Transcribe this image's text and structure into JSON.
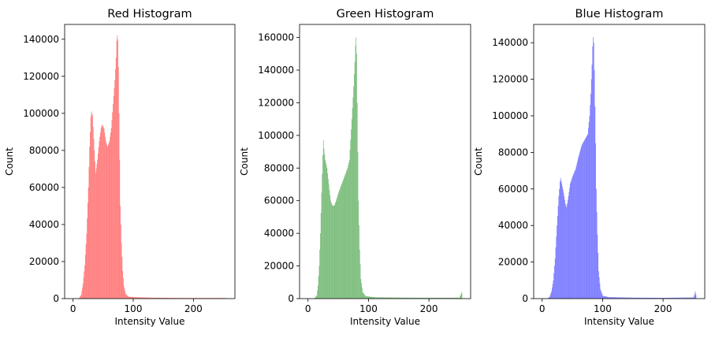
{
  "chart_data": [
    {
      "type": "bar",
      "title": "Red Histogram",
      "xlabel": "Intensity Value",
      "ylabel": "Count",
      "color": "#ff0000",
      "alpha": 0.5,
      "xlim": [
        -14,
        269
      ],
      "ylim": [
        0,
        148000
      ],
      "xticks": [
        0,
        100,
        200
      ],
      "yticks": [
        0,
        20000,
        40000,
        60000,
        80000,
        100000,
        120000,
        140000
      ],
      "bin_width": 1,
      "shape_points": [
        [
          0,
          0
        ],
        [
          9,
          0
        ],
        [
          13,
          2000
        ],
        [
          16,
          8000
        ],
        [
          19,
          18000
        ],
        [
          22,
          35000
        ],
        [
          25,
          60000
        ],
        [
          27,
          82000
        ],
        [
          29,
          98000
        ],
        [
          30,
          101000
        ],
        [
          32,
          99000
        ],
        [
          35,
          80000
        ],
        [
          37,
          68000
        ],
        [
          40,
          75000
        ],
        [
          43,
          85000
        ],
        [
          46,
          92000
        ],
        [
          48,
          94000
        ],
        [
          51,
          92000
        ],
        [
          54,
          85000
        ],
        [
          57,
          82000
        ],
        [
          60,
          85000
        ],
        [
          63,
          92000
        ],
        [
          66,
          105000
        ],
        [
          69,
          118000
        ],
        [
          71,
          130000
        ],
        [
          72,
          139000
        ],
        [
          73,
          142000
        ],
        [
          74,
          140000
        ],
        [
          75,
          125000
        ],
        [
          76,
          100000
        ],
        [
          77,
          75000
        ],
        [
          78,
          50000
        ],
        [
          80,
          30000
        ],
        [
          82,
          15000
        ],
        [
          84,
          7000
        ],
        [
          87,
          2500
        ],
        [
          92,
          1000
        ],
        [
          100,
          800
        ],
        [
          130,
          500
        ],
        [
          170,
          350
        ],
        [
          230,
          300
        ],
        [
          250,
          350
        ],
        [
          255,
          200
        ]
      ]
    },
    {
      "type": "bar",
      "title": "Green Histogram",
      "xlabel": "Intensity Value",
      "ylabel": "Count",
      "color": "#008000",
      "alpha": 0.5,
      "xlim": [
        -14,
        269
      ],
      "ylim": [
        0,
        168000
      ],
      "xticks": [
        0,
        100,
        200
      ],
      "yticks": [
        0,
        20000,
        40000,
        60000,
        80000,
        100000,
        120000,
        140000,
        160000
      ],
      "bin_width": 1,
      "shape_points": [
        [
          0,
          0
        ],
        [
          10,
          0
        ],
        [
          14,
          2000
        ],
        [
          16,
          8000
        ],
        [
          18,
          20000
        ],
        [
          20,
          40000
        ],
        [
          22,
          65000
        ],
        [
          24,
          88000
        ],
        [
          25,
          97000
        ],
        [
          26,
          92000
        ],
        [
          28,
          85000
        ],
        [
          31,
          80000
        ],
        [
          34,
          70000
        ],
        [
          37,
          60000
        ],
        [
          40,
          57000
        ],
        [
          43,
          57000
        ],
        [
          46,
          60000
        ],
        [
          50,
          65000
        ],
        [
          55,
          70000
        ],
        [
          60,
          75000
        ],
        [
          65,
          80000
        ],
        [
          68,
          85000
        ],
        [
          72,
          110000
        ],
        [
          75,
          130000
        ],
        [
          77,
          145000
        ],
        [
          78,
          155000
        ],
        [
          79,
          160000
        ],
        [
          80,
          150000
        ],
        [
          81,
          120000
        ],
        [
          82,
          90000
        ],
        [
          83,
          60000
        ],
        [
          85,
          30000
        ],
        [
          87,
          12000
        ],
        [
          90,
          4000
        ],
        [
          95,
          1500
        ],
        [
          110,
          800
        ],
        [
          150,
          600
        ],
        [
          200,
          500
        ],
        [
          250,
          500
        ],
        [
          254,
          4000
        ],
        [
          255,
          0
        ]
      ]
    },
    {
      "type": "bar",
      "title": "Blue Histogram",
      "xlabel": "Intensity Value",
      "ylabel": "Count",
      "color": "#0000ff",
      "alpha": 0.5,
      "xlim": [
        -14,
        269
      ],
      "ylim": [
        0,
        150000
      ],
      "xticks": [
        0,
        100,
        200
      ],
      "yticks": [
        0,
        20000,
        40000,
        60000,
        80000,
        100000,
        120000,
        140000
      ],
      "bin_width": 1,
      "shape_points": [
        [
          0,
          0
        ],
        [
          8,
          0
        ],
        [
          12,
          1000
        ],
        [
          15,
          4000
        ],
        [
          18,
          10000
        ],
        [
          21,
          22000
        ],
        [
          24,
          40000
        ],
        [
          27,
          56000
        ],
        [
          29,
          64000
        ],
        [
          30,
          66000
        ],
        [
          32,
          63000
        ],
        [
          35,
          58000
        ],
        [
          38,
          52000
        ],
        [
          40,
          50000
        ],
        [
          43,
          56000
        ],
        [
          46,
          63000
        ],
        [
          50,
          67000
        ],
        [
          55,
          71000
        ],
        [
          60,
          78000
        ],
        [
          65,
          84000
        ],
        [
          70,
          87000
        ],
        [
          75,
          90000
        ],
        [
          78,
          100000
        ],
        [
          80,
          112000
        ],
        [
          82,
          128000
        ],
        [
          83,
          138000
        ],
        [
          84,
          143000
        ],
        [
          85,
          140000
        ],
        [
          86,
          125000
        ],
        [
          87,
          105000
        ],
        [
          88,
          85000
        ],
        [
          89,
          60000
        ],
        [
          91,
          35000
        ],
        [
          93,
          15000
        ],
        [
          96,
          5000
        ],
        [
          100,
          1500
        ],
        [
          110,
          800
        ],
        [
          150,
          500
        ],
        [
          200,
          400
        ],
        [
          250,
          600
        ],
        [
          253,
          4000
        ],
        [
          255,
          0
        ]
      ]
    }
  ]
}
